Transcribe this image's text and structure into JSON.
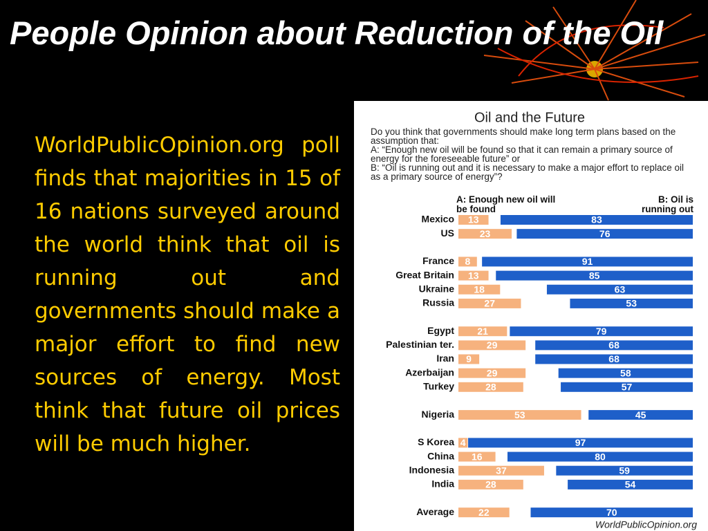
{
  "slide": {
    "title": "People Opinion about Reduction of the Oil",
    "body": "WorldPublicOpinion.org poll finds that majorities in 15 of 16 nations surveyed around the world think that oil is running out and governments should make a major effort to find new sources of energy. Most think that future oil prices will be much higher."
  },
  "chart_data": {
    "type": "bar",
    "orientation": "horizontal",
    "title": "Oil and the Future",
    "question": "Do you think that governments should make long term plans based on the assumption that:",
    "option_a": "A: “Enough new oil will be found so that it can remain a primary source of energy for the foreseeable future” or",
    "option_b": "B: “Oil is running out and it is necessary to make a major effort to replace oil as a primary source of energy”?",
    "source": "WorldPublicOpinion.org",
    "categories": [
      "Mexico",
      "US",
      null,
      "France",
      "Great Britain",
      "Ukraine",
      "Russia",
      null,
      "Egypt",
      "Palestinian ter.",
      "Iran",
      "Azerbaijan",
      "Turkey",
      null,
      "Nigeria",
      null,
      "S Korea",
      "China",
      "Indonesia",
      "India",
      null,
      "Average"
    ],
    "series": [
      {
        "name": "A: Enough new oil will be found",
        "color": "#f6b27e",
        "values": [
          13,
          23,
          null,
          8,
          13,
          18,
          27,
          null,
          21,
          29,
          9,
          29,
          28,
          null,
          53,
          null,
          4,
          16,
          37,
          28,
          null,
          22
        ]
      },
      {
        "name": "B: Oil is running out",
        "color": "#1e5fc9",
        "values": [
          83,
          76,
          null,
          91,
          85,
          63,
          53,
          null,
          79,
          68,
          68,
          58,
          57,
          null,
          45,
          null,
          97,
          80,
          59,
          54,
          null,
          70
        ]
      }
    ]
  }
}
